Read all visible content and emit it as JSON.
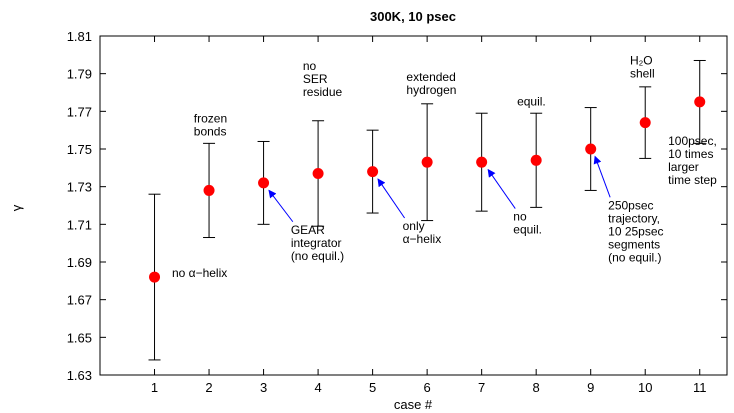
{
  "chart_data": {
    "type": "scatter",
    "title": "300K, 10 psec",
    "xlabel": "case #",
    "ylabel": "γ",
    "xlim": [
      0,
      11.5
    ],
    "ylim": [
      1.63,
      1.81
    ],
    "x_ticks": [
      1,
      2,
      3,
      4,
      5,
      6,
      7,
      8,
      9,
      10,
      11
    ],
    "y_ticks": [
      1.63,
      1.65,
      1.67,
      1.69,
      1.71,
      1.73,
      1.75,
      1.77,
      1.79,
      1.81
    ],
    "y_tick_labels": [
      "1.63",
      "1.65",
      "1.67",
      "1.69",
      "1.71",
      "1.73",
      "1.75",
      "1.77",
      "1.79",
      "1.81"
    ],
    "grid": false,
    "marker_color": "#ff0000",
    "arrow_color": "#0000ff",
    "points": [
      {
        "x": 1,
        "y": 1.682,
        "err_low": 1.638,
        "err_high": 1.726
      },
      {
        "x": 2,
        "y": 1.728,
        "err_low": 1.703,
        "err_high": 1.753
      },
      {
        "x": 3,
        "y": 1.732,
        "err_low": 1.71,
        "err_high": 1.754
      },
      {
        "x": 4,
        "y": 1.737,
        "err_low": 1.709,
        "err_high": 1.765
      },
      {
        "x": 5,
        "y": 1.738,
        "err_low": 1.716,
        "err_high": 1.76
      },
      {
        "x": 6,
        "y": 1.743,
        "err_low": 1.712,
        "err_high": 1.774
      },
      {
        "x": 7,
        "y": 1.743,
        "err_low": 1.717,
        "err_high": 1.769
      },
      {
        "x": 8,
        "y": 1.744,
        "err_low": 1.719,
        "err_high": 1.769
      },
      {
        "x": 9,
        "y": 1.75,
        "err_low": 1.728,
        "err_high": 1.772
      },
      {
        "x": 10,
        "y": 1.764,
        "err_low": 1.745,
        "err_high": 1.783
      },
      {
        "x": 11,
        "y": 1.775,
        "err_low": 1.753,
        "err_high": 1.797
      }
    ],
    "annotations": [
      {
        "lines": [
          "no α−helix"
        ],
        "x": 1.32,
        "y": 1.682,
        "arrow": false
      },
      {
        "lines": [
          "frozen",
          "bonds"
        ],
        "x": 1.72,
        "y": 1.764,
        "arrow": false
      },
      {
        "lines": [
          "GEAR",
          "integrator",
          "(no equil.)"
        ],
        "x": 3.5,
        "y": 1.705,
        "arrow": true,
        "arrow_to_x": 3.1,
        "arrow_to_y": 1.728
      },
      {
        "lines": [
          "no",
          "SER",
          "residue"
        ],
        "x": 3.72,
        "y": 1.792,
        "arrow": false
      },
      {
        "lines": [
          "only",
          "α−helix"
        ],
        "x": 5.55,
        "y": 1.707,
        "arrow": true,
        "arrow_to_x": 5.1,
        "arrow_to_y": 1.734
      },
      {
        "lines": [
          "extended",
          "hydrogen"
        ],
        "x": 5.62,
        "y": 1.786,
        "arrow": false
      },
      {
        "lines": [
          "no",
          "equil."
        ],
        "x": 7.58,
        "y": 1.712,
        "arrow": true,
        "arrow_to_x": 7.12,
        "arrow_to_y": 1.739
      },
      {
        "lines": [
          "equil."
        ],
        "x": 7.65,
        "y": 1.773,
        "arrow": false
      },
      {
        "lines": [
          "250psec",
          "trajectory,",
          "10 25psec",
          "segments",
          "(no equil.)"
        ],
        "x": 9.32,
        "y": 1.718,
        "arrow": true,
        "arrow_to_x": 9.08,
        "arrow_to_y": 1.746
      },
      {
        "lines": [
          "H₂O",
          "shell"
        ],
        "x": 9.72,
        "y": 1.795,
        "arrow": false
      },
      {
        "lines": [
          "100psec,",
          "10 times",
          "larger",
          "time step"
        ],
        "x": 10.42,
        "y": 1.752,
        "arrow": false
      }
    ]
  }
}
